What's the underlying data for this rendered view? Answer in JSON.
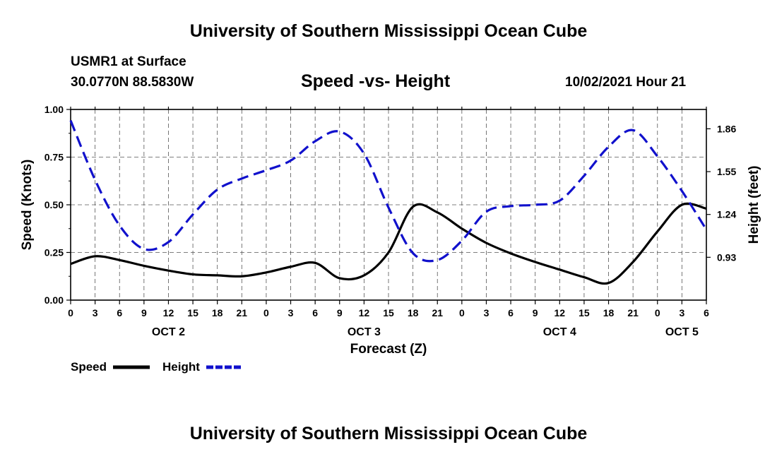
{
  "header": {
    "title": "University of Southern Mississippi Ocean Cube",
    "station": "USMR1 at Surface",
    "coords": "30.0770N  88.5830W",
    "chart_title": "Speed -vs- Height",
    "datetime": "10/02/2021 Hour 21"
  },
  "footer": {
    "title": "University of Southern Mississippi Ocean Cube"
  },
  "legend": {
    "speed_label": "Speed",
    "height_label": "Height"
  },
  "colors": {
    "speed": "#000000",
    "height": "#1111cc"
  },
  "chart_data": {
    "type": "line",
    "title": "Speed -vs- Height",
    "xlabel": "Forecast (Z)",
    "ylabel": "Speed (Knots)",
    "y2label": "Height (feet)",
    "x_hours": [
      0,
      78
    ],
    "ylim": [
      0,
      1.0
    ],
    "y2lim": [
      0.62,
      2.0
    ],
    "yticks": [
      0.0,
      0.25,
      0.5,
      0.75,
      1.0
    ],
    "ytick_labels": [
      "0.00",
      "0.25",
      "0.50",
      "0.75",
      "1.00"
    ],
    "y2ticks": [
      0.93,
      1.24,
      1.55,
      1.86
    ],
    "y2tick_labels": [
      "0.93",
      "1.24",
      "1.55",
      "1.86"
    ],
    "xtick_labels": [
      "0",
      "3",
      "6",
      "9",
      "12",
      "15",
      "18",
      "21",
      "0",
      "3",
      "6",
      "9",
      "12",
      "15",
      "18",
      "21",
      "0",
      "3",
      "6",
      "9",
      "12",
      "15",
      "18",
      "21",
      "0",
      "3",
      "6"
    ],
    "day_labels": [
      {
        "label": "OCT 2",
        "hour": 12
      },
      {
        "label": "OCT 3",
        "hour": 36
      },
      {
        "label": "OCT 4",
        "hour": 60
      },
      {
        "label": "OCT 5",
        "hour": 75
      }
    ],
    "series": [
      {
        "name": "Speed",
        "axis": "left",
        "style": "solid",
        "x": [
          0,
          3,
          6,
          9,
          12,
          15,
          18,
          21,
          24,
          27,
          30,
          33,
          36,
          39,
          42,
          45,
          48,
          51,
          54,
          57,
          60,
          63,
          66,
          69,
          72,
          75,
          78
        ],
        "values": [
          0.19,
          0.23,
          0.21,
          0.18,
          0.155,
          0.135,
          0.13,
          0.125,
          0.145,
          0.175,
          0.195,
          0.115,
          0.13,
          0.25,
          0.49,
          0.46,
          0.375,
          0.3,
          0.245,
          0.2,
          0.16,
          0.12,
          0.09,
          0.2,
          0.36,
          0.5,
          0.48
        ]
      },
      {
        "name": "Height",
        "axis": "right",
        "style": "dashed",
        "x": [
          0,
          3,
          6,
          9,
          12,
          15,
          18,
          21,
          24,
          27,
          30,
          33,
          36,
          39,
          42,
          45,
          48,
          51,
          54,
          57,
          60,
          63,
          66,
          69,
          72,
          75,
          78
        ],
        "values": [
          1.92,
          1.49,
          1.16,
          0.99,
          1.04,
          1.24,
          1.42,
          1.5,
          1.56,
          1.63,
          1.77,
          1.84,
          1.68,
          1.29,
          0.96,
          0.91,
          1.05,
          1.26,
          1.3,
          1.31,
          1.34,
          1.52,
          1.73,
          1.85,
          1.66,
          1.41,
          1.13
        ]
      }
    ]
  }
}
